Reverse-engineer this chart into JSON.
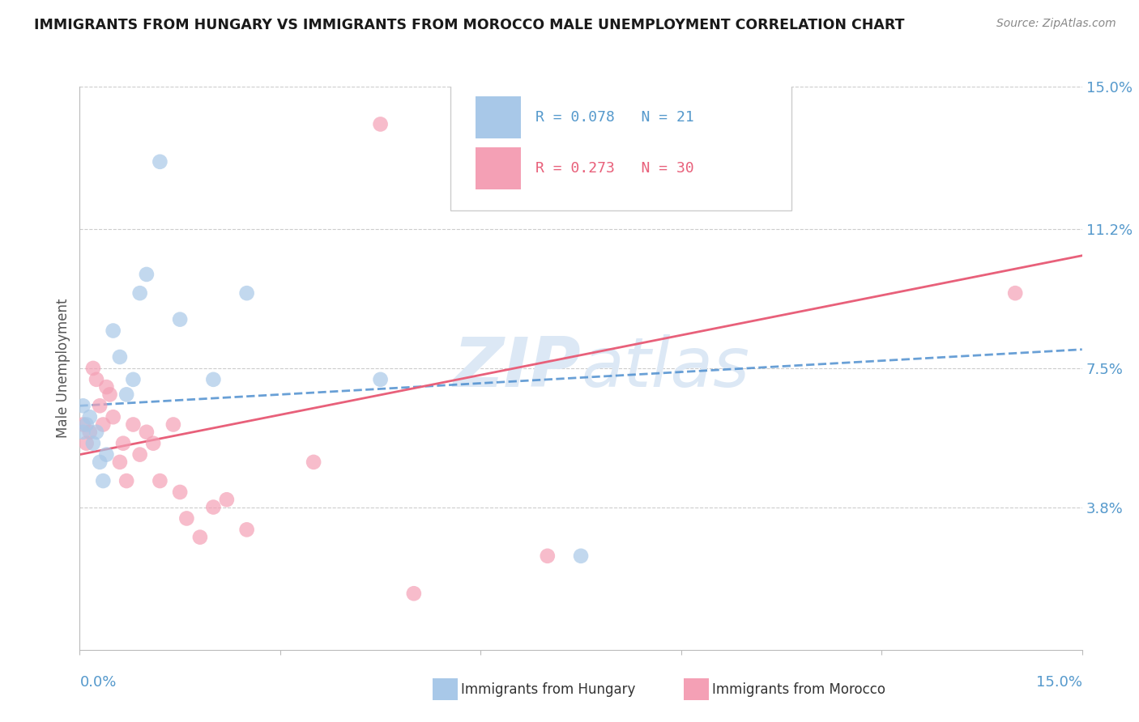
{
  "title": "IMMIGRANTS FROM HUNGARY VS IMMIGRANTS FROM MOROCCO MALE UNEMPLOYMENT CORRELATION CHART",
  "source": "Source: ZipAtlas.com",
  "ylabel": "Male Unemployment",
  "xmin": 0.0,
  "xmax": 15.0,
  "ymin": 0.0,
  "ymax": 15.0,
  "hungary_R": 0.078,
  "hungary_N": 21,
  "morocco_R": 0.273,
  "morocco_N": 30,
  "hungary_color": "#a8c8e8",
  "morocco_color": "#f4a0b5",
  "hungary_line_color": "#4488cc",
  "morocco_line_color": "#e8607a",
  "watermark": "ZIPAtlas",
  "watermark_color": "#dce8f5",
  "gridline_color": "#cccccc",
  "ytick_vals": [
    3.8,
    7.5,
    11.2,
    15.0
  ],
  "hungary_x": [
    0.05,
    0.1,
    0.15,
    0.2,
    0.25,
    0.3,
    0.35,
    0.4,
    0.5,
    0.6,
    0.7,
    0.8,
    0.9,
    1.0,
    1.2,
    1.5,
    2.0,
    2.5,
    4.5,
    7.5,
    0.05
  ],
  "hungary_y": [
    5.8,
    6.0,
    6.2,
    5.5,
    5.8,
    5.0,
    4.5,
    5.2,
    8.5,
    7.8,
    6.8,
    7.2,
    9.5,
    10.0,
    13.0,
    8.8,
    7.2,
    9.5,
    7.2,
    2.5,
    6.5
  ],
  "morocco_x": [
    0.05,
    0.1,
    0.15,
    0.2,
    0.25,
    0.3,
    0.35,
    0.4,
    0.45,
    0.5,
    0.6,
    0.65,
    0.7,
    0.8,
    0.9,
    1.0,
    1.1,
    1.2,
    1.4,
    1.5,
    1.6,
    1.8,
    2.0,
    2.2,
    2.5,
    3.5,
    4.5,
    5.0,
    7.0,
    14.0
  ],
  "morocco_y": [
    6.0,
    5.5,
    5.8,
    7.5,
    7.2,
    6.5,
    6.0,
    7.0,
    6.8,
    6.2,
    5.0,
    5.5,
    4.5,
    6.0,
    5.2,
    5.8,
    5.5,
    4.5,
    6.0,
    4.2,
    3.5,
    3.0,
    3.8,
    4.0,
    3.2,
    5.0,
    14.0,
    1.5,
    2.5,
    9.5
  ]
}
